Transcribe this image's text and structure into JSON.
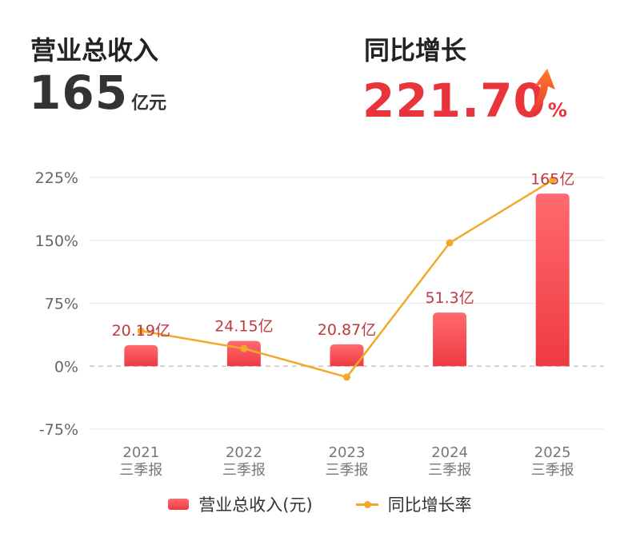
{
  "header": {
    "revenue_label": "营业总收入",
    "revenue_value": "165",
    "revenue_unit": "亿元",
    "growth_label": "同比增长",
    "growth_value": "221.70",
    "growth_unit": "%",
    "growth_arrow_icon": "trend-up-arrow-icon"
  },
  "colors": {
    "bar_top": "#ff6a6f",
    "bar_bottom": "#ee3a42",
    "line": "#f2a92a",
    "growth_value": "#e8343a",
    "data_label": "#c0393f"
  },
  "chart_data": {
    "type": "bar",
    "categories": [
      "2021\n三季报",
      "2022\n三季报",
      "2023\n三季报",
      "2024\n三季报",
      "2025\n三季报"
    ],
    "series": [
      {
        "name": "营业总收入(元)",
        "type": "bar",
        "values_yi": [
          20.19,
          24.15,
          20.87,
          51.3,
          165
        ],
        "labels": [
          "20.19亿",
          "24.15亿",
          "20.87亿",
          "51.3亿",
          "165亿"
        ]
      },
      {
        "name": "同比增长率",
        "type": "line",
        "values_percent": [
          42,
          21,
          -13,
          147,
          221.7
        ]
      }
    ],
    "y_axis": {
      "ticks": [
        "225%",
        "150%",
        "75%",
        "0%",
        "-75%"
      ],
      "tick_values": [
        225,
        150,
        75,
        0,
        -75
      ],
      "range": [
        -75,
        225
      ]
    },
    "grid": true,
    "zero_line": "dashed",
    "legend_position": "bottom-center"
  }
}
